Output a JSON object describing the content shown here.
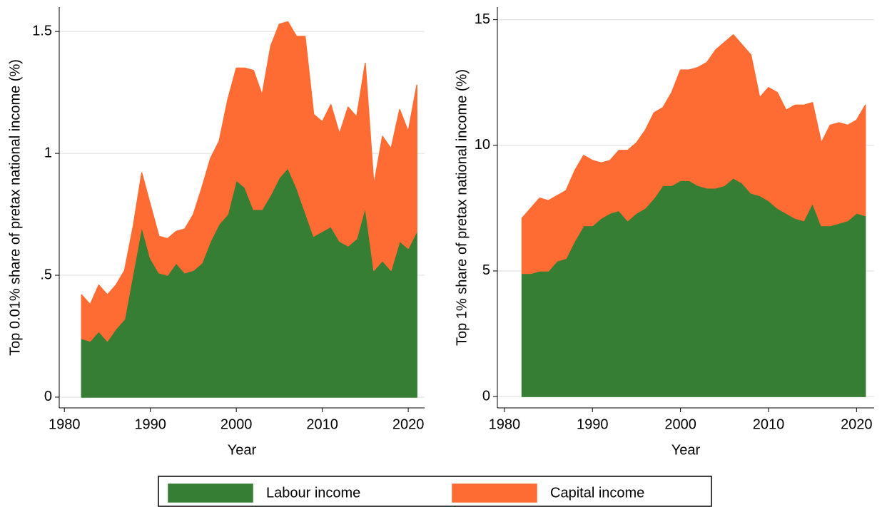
{
  "chart_data": [
    {
      "type": "stacked-area",
      "y_label": "Top 0.01% share of pretax national income (%)",
      "x_label": "Year",
      "x": [
        1982,
        1983,
        1984,
        1985,
        1986,
        1987,
        1988,
        1989,
        1990,
        1991,
        1992,
        1993,
        1994,
        1995,
        1996,
        1997,
        1998,
        1999,
        2000,
        2001,
        2002,
        2003,
        2004,
        2005,
        2006,
        2007,
        2008,
        2009,
        2010,
        2011,
        2012,
        2013,
        2014,
        2015,
        2016,
        2017,
        2018,
        2019,
        2020,
        2021
      ],
      "series": [
        {
          "name": "Labour income",
          "color": "#367e33",
          "values": [
            0.24,
            0.23,
            0.27,
            0.23,
            0.28,
            0.32,
            0.51,
            0.7,
            0.57,
            0.51,
            0.5,
            0.55,
            0.51,
            0.52,
            0.55,
            0.64,
            0.71,
            0.75,
            0.89,
            0.86,
            0.77,
            0.77,
            0.83,
            0.9,
            0.94,
            0.86,
            0.76,
            0.66,
            0.68,
            0.7,
            0.64,
            0.62,
            0.65,
            0.78,
            0.52,
            0.56,
            0.52,
            0.64,
            0.61,
            0.68
          ]
        },
        {
          "name": "Capital income",
          "color": "#fe6b33",
          "values": [
            0.18,
            0.15,
            0.19,
            0.19,
            0.18,
            0.2,
            0.19,
            0.22,
            0.22,
            0.15,
            0.15,
            0.13,
            0.18,
            0.23,
            0.31,
            0.34,
            0.34,
            0.47,
            0.46,
            0.49,
            0.57,
            0.47,
            0.61,
            0.63,
            0.6,
            0.62,
            0.72,
            0.5,
            0.45,
            0.5,
            0.44,
            0.57,
            0.5,
            0.59,
            0.35,
            0.51,
            0.5,
            0.54,
            0.48,
            0.6
          ]
        }
      ],
      "xlim": [
        1979.4,
        2021.9
      ],
      "xticks": [
        1980,
        1990,
        2000,
        2010,
        2020
      ],
      "ylim": [
        -0.044,
        1.6
      ],
      "yticks": [
        0,
        {
          "value": 0.5,
          "label": ".5"
        },
        1,
        1.5
      ],
      "grid": true
    },
    {
      "type": "stacked-area",
      "y_label": "Top 1% share of pretax national income (%)",
      "x_label": "Year",
      "x": [
        1982,
        1983,
        1984,
        1985,
        1986,
        1987,
        1988,
        1989,
        1990,
        1991,
        1992,
        1993,
        1994,
        1995,
        1996,
        1997,
        1998,
        1999,
        2000,
        2001,
        2002,
        2003,
        2004,
        2005,
        2006,
        2007,
        2008,
        2009,
        2010,
        2011,
        2012,
        2013,
        2014,
        2015,
        2016,
        2017,
        2018,
        2019,
        2020,
        2021
      ],
      "series": [
        {
          "color": "#367e33",
          "values": [
            4.9,
            4.9,
            5.0,
            5.0,
            5.4,
            5.5,
            6.2,
            6.8,
            6.8,
            7.1,
            7.3,
            7.4,
            7.0,
            7.3,
            7.5,
            7.9,
            8.4,
            8.4,
            8.6,
            8.6,
            8.4,
            8.3,
            8.3,
            8.4,
            8.7,
            8.5,
            8.1,
            8.0,
            7.8,
            7.5,
            7.3,
            7.1,
            7.0,
            7.7,
            6.8,
            6.8,
            6.9,
            7.0,
            7.3,
            7.2
          ]
        },
        {
          "color": "#fe6b33",
          "values": [
            2.2,
            2.6,
            2.9,
            2.8,
            2.6,
            2.7,
            2.8,
            2.8,
            2.6,
            2.2,
            2.1,
            2.4,
            2.8,
            2.8,
            3.1,
            3.4,
            3.1,
            3.7,
            4.4,
            4.4,
            4.7,
            5.0,
            5.5,
            5.7,
            5.7,
            5.5,
            5.5,
            3.9,
            4.5,
            4.6,
            4.1,
            4.5,
            4.6,
            4.0,
            3.3,
            4.0,
            4.0,
            3.8,
            3.7,
            4.4
          ]
        }
      ],
      "xlim": [
        1979.2,
        2022.0
      ],
      "xticks": [
        1980,
        1990,
        2000,
        2010,
        2020
      ],
      "ylim": [
        -0.45,
        15.5
      ],
      "yticks": [
        0,
        5,
        10,
        15
      ],
      "grid": true
    }
  ]
}
